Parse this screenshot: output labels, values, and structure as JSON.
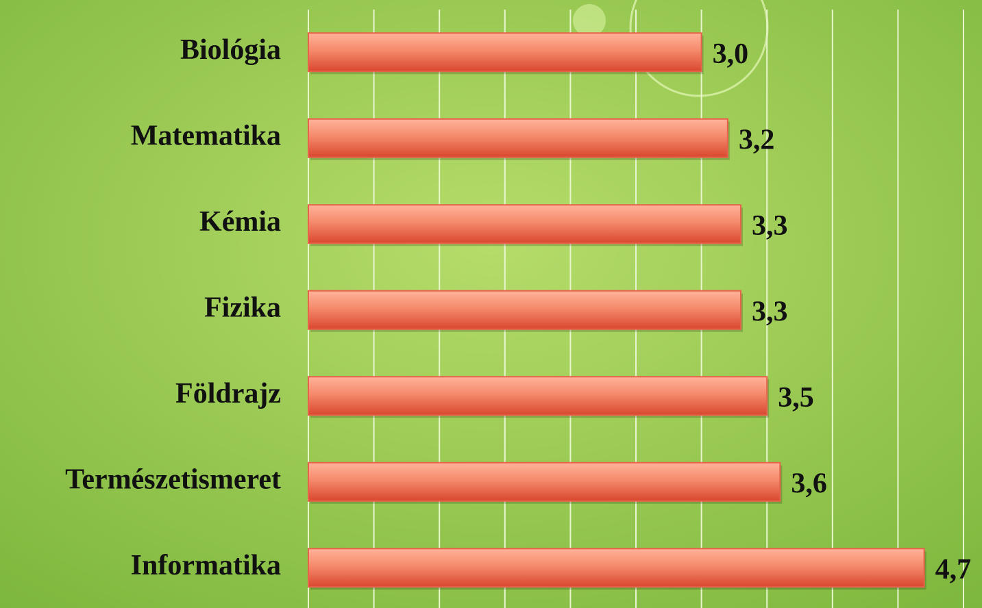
{
  "chart_data": {
    "type": "bar",
    "orientation": "horizontal",
    "categories": [
      "Biológia",
      "Matematika",
      "Kémia",
      "Fizika",
      "Földrajz",
      "Természetismeret",
      "Informatika"
    ],
    "values": [
      3.0,
      3.2,
      3.3,
      3.3,
      3.5,
      3.6,
      4.7
    ],
    "value_labels": [
      "3,0",
      "3,2",
      "3,3",
      "3,3",
      "3,5",
      "3,6",
      "4,7"
    ],
    "color": "#e8614a",
    "xlim": [
      0,
      5
    ],
    "xticks": [
      0,
      0.5,
      1,
      1.5,
      2,
      2.5,
      3,
      3.5,
      4,
      4.5,
      5
    ],
    "grid": true
  }
}
